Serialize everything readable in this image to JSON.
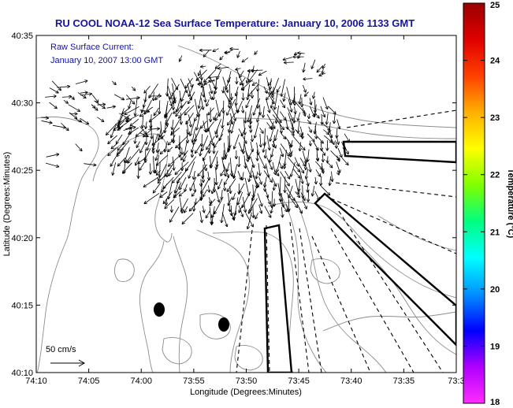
{
  "title": "RU COOL  NOAA-12  Sea Surface Temperature:  January 10, 2006 1133 GMT",
  "annotation": {
    "line1": "Raw Surface Current:",
    "line2": "January 10, 2007 13:00 GMT"
  },
  "scale": {
    "label": "50 cm/s"
  },
  "axes": {
    "xlabel": "Longitude (Degrees:Minutes)",
    "ylabel": "Latitude (Degrees:Minutes)",
    "x_ticks": [
      "74:10",
      "74:05",
      "74:00",
      "73:55",
      "73:50",
      "73:45",
      "73:40",
      "73:35",
      "73:3"
    ],
    "y_ticks": [
      "40:35",
      "40:30",
      "40:25",
      "40:20",
      "40:15",
      "40:10"
    ]
  },
  "colorbar": {
    "label": "Temperature (°C)",
    "ticks": [
      "25",
      "24",
      "23",
      "22",
      "21",
      "20",
      "19",
      "18"
    ],
    "range": [
      18,
      25
    ],
    "colors": [
      "#ff2cff",
      "#b000ff",
      "#0000ff",
      "#0090ff",
      "#00ffff",
      "#00ff80",
      "#80ff00",
      "#ffff00",
      "#ffb000",
      "#ff4000",
      "#e00000",
      "#9a0000"
    ]
  },
  "map": {
    "background_color": "#ffffff",
    "contour_color": "#8c8c8c",
    "vector_color": "#000000"
  }
}
